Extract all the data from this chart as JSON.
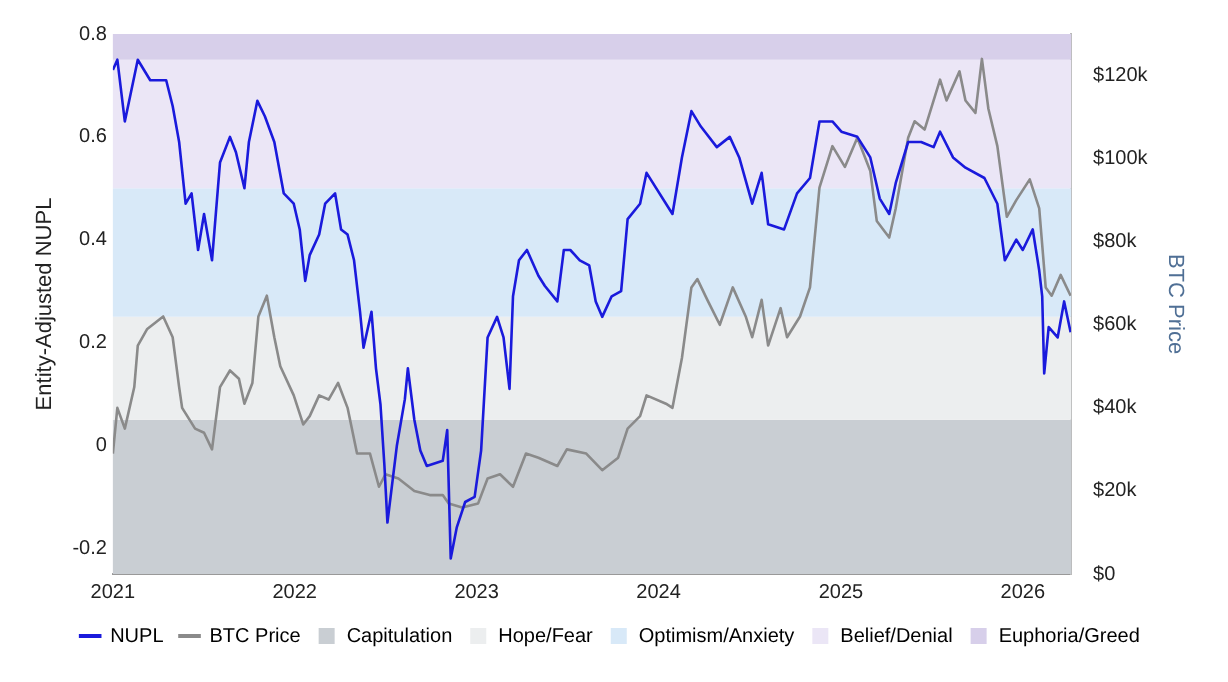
{
  "chart_data": {
    "type": "line",
    "xlabel": null,
    "ylabel": "Entity-Adjusted NUPL",
    "y2label": "BTC Price",
    "xlim": [
      "2021-01-01",
      "2026-04-08"
    ],
    "xticks": [
      "2021",
      "2022",
      "2023",
      "2024",
      "2025",
      "2026"
    ],
    "ylim": [
      -0.25,
      0.8
    ],
    "yticks": [
      -0.2,
      0,
      0.2,
      0.4,
      0.6,
      0.8
    ],
    "y2lim": [
      0,
      130000
    ],
    "y2ticks": [
      {
        "value": 0,
        "label": "$0"
      },
      {
        "value": 20000,
        "label": "$20k"
      },
      {
        "value": 40000,
        "label": "$40k"
      },
      {
        "value": 60000,
        "label": "$60k"
      },
      {
        "value": 80000,
        "label": "$80k"
      },
      {
        "value": 100000,
        "label": "$100k"
      },
      {
        "value": 120000,
        "label": "$120k"
      }
    ],
    "grid": false,
    "legend": "bottom",
    "marker": "none",
    "line_style": "solid",
    "bands": [
      {
        "axis": "y",
        "from": -0.25,
        "to": 0.05,
        "label": "Capitulation",
        "color": "#c9ced3"
      },
      {
        "axis": "y",
        "from": 0.05,
        "to": 0.25,
        "label": "Hope/Fear",
        "color": "#eceeef"
      },
      {
        "axis": "y",
        "from": 0.25,
        "to": 0.5,
        "label": "Optimism/Anxiety",
        "color": "#d8e9f8"
      },
      {
        "axis": "y",
        "from": 0.5,
        "to": 0.75,
        "label": "Belief/Denial",
        "color": "#ebe6f6"
      },
      {
        "axis": "y",
        "from": 0.75,
        "to": 0.8,
        "label": "Euphoria/Greed",
        "color": "#d7cfea"
      }
    ],
    "series": [
      {
        "name": "NUPL",
        "color": "#1a1adc",
        "x": [
          "2021-01-01",
          "2021-01-10",
          "2021-01-25",
          "2021-02-20",
          "2021-03-17",
          "2021-04-18",
          "2021-05-01",
          "2021-05-14",
          "2021-05-27",
          "2021-06-08",
          "2021-06-21",
          "2021-07-03",
          "2021-07-19",
          "2021-08-04",
          "2021-08-24",
          "2021-09-05",
          "2021-09-22",
          "2021-10-01",
          "2021-10-18",
          "2021-11-02",
          "2021-11-21",
          "2021-12-10",
          "2021-12-30",
          "2022-01-11",
          "2022-01-22",
          "2022-01-31",
          "2022-02-19",
          "2022-03-03",
          "2022-03-23",
          "2022-04-04",
          "2022-04-17",
          "2022-04-30",
          "2022-05-12",
          "2022-05-19",
          "2022-06-04",
          "2022-06-13",
          "2022-06-22",
          "2022-06-30",
          "2022-07-06",
          "2022-07-25",
          "2022-08-10",
          "2022-08-16",
          "2022-08-29",
          "2022-09-10",
          "2022-09-23",
          "2022-10-25",
          "2022-11-03",
          "2022-11-10",
          "2022-11-22",
          "2022-12-09",
          "2022-12-28",
          "2023-01-10",
          "2023-01-23",
          "2023-02-11",
          "2023-02-24",
          "2023-03-08",
          "2023-03-15",
          "2023-03-27",
          "2023-04-12",
          "2023-05-05",
          "2023-05-18",
          "2023-06-12",
          "2023-06-25",
          "2023-07-08",
          "2023-07-27",
          "2023-08-15",
          "2023-08-28",
          "2023-09-10",
          "2023-09-29",
          "2023-10-18",
          "2023-10-31",
          "2023-11-25",
          "2023-12-08",
          "2024-01-29",
          "2024-02-17",
          "2024-03-07",
          "2024-03-26",
          "2024-04-27",
          "2024-05-23",
          "2024-06-11",
          "2024-07-07",
          "2024-07-26",
          "2024-08-08",
          "2024-09-09",
          "2024-10-05",
          "2024-10-31",
          "2024-11-19",
          "2024-12-15",
          "2025-01-02",
          "2025-02-03",
          "2025-03-01",
          "2025-03-20",
          "2025-04-08",
          "2025-04-21",
          "2025-05-16",
          "2025-06-11",
          "2025-07-06",
          "2025-07-19",
          "2025-08-14",
          "2025-09-08",
          "2025-10-16",
          "2025-11-11",
          "2025-11-26",
          "2025-12-19",
          "2026-01-01",
          "2026-01-21",
          "2026-02-03",
          "2026-02-09",
          "2026-02-13",
          "2026-02-22",
          "2026-03-12",
          "2026-03-25",
          "2026-04-07"
        ],
        "values": [
          0.73,
          0.75,
          0.63,
          0.75,
          0.71,
          0.71,
          0.66,
          0.59,
          0.47,
          0.49,
          0.38,
          0.45,
          0.36,
          0.55,
          0.6,
          0.57,
          0.5,
          0.59,
          0.67,
          0.64,
          0.59,
          0.49,
          0.47,
          0.42,
          0.32,
          0.37,
          0.41,
          0.47,
          0.49,
          0.42,
          0.41,
          0.36,
          0.26,
          0.19,
          0.26,
          0.15,
          0.08,
          -0.04,
          -0.15,
          0.0,
          0.09,
          0.15,
          0.05,
          -0.01,
          -0.04,
          -0.03,
          0.03,
          -0.22,
          -0.16,
          -0.11,
          -0.1,
          -0.01,
          0.21,
          0.25,
          0.21,
          0.11,
          0.29,
          0.36,
          0.38,
          0.33,
          0.31,
          0.28,
          0.38,
          0.38,
          0.36,
          0.35,
          0.28,
          0.25,
          0.29,
          0.3,
          0.44,
          0.47,
          0.53,
          0.45,
          0.56,
          0.65,
          0.62,
          0.58,
          0.6,
          0.56,
          0.47,
          0.53,
          0.43,
          0.42,
          0.49,
          0.52,
          0.63,
          0.63,
          0.61,
          0.6,
          0.56,
          0.48,
          0.45,
          0.51,
          0.59,
          0.59,
          0.58,
          0.61,
          0.56,
          0.54,
          0.52,
          0.47,
          0.36,
          0.4,
          0.38,
          0.42,
          0.34,
          0.29,
          0.14,
          0.23,
          0.21,
          0.28,
          0.22
        ]
      },
      {
        "name": "BTC Price",
        "color": "#8a8a8a",
        "axis": "y2",
        "x": [
          "2021-01-01",
          "2021-01-10",
          "2021-01-25",
          "2021-02-13",
          "2021-02-20",
          "2021-03-11",
          "2021-04-12",
          "2021-05-01",
          "2021-05-14",
          "2021-05-20",
          "2021-06-15",
          "2021-07-03",
          "2021-07-19",
          "2021-08-04",
          "2021-08-24",
          "2021-09-11",
          "2021-09-22",
          "2021-10-08",
          "2021-10-20",
          "2021-11-06",
          "2021-11-21",
          "2021-12-03",
          "2021-12-30",
          "2022-01-18",
          "2022-01-31",
          "2022-02-19",
          "2022-03-10",
          "2022-03-29",
          "2022-04-17",
          "2022-05-06",
          "2022-06-01",
          "2022-06-19",
          "2022-07-02",
          "2022-07-28",
          "2022-08-29",
          "2022-09-29",
          "2022-10-25",
          "2022-11-06",
          "2022-12-03",
          "2023-01-04",
          "2023-01-23",
          "2023-02-17",
          "2023-03-15",
          "2023-04-10",
          "2023-05-05",
          "2023-06-12",
          "2023-07-01",
          "2023-08-09",
          "2023-09-10",
          "2023-10-12",
          "2023-10-31",
          "2023-11-25",
          "2023-12-08",
          "2024-01-16",
          "2024-01-29",
          "2024-02-17",
          "2024-03-07",
          "2024-03-19",
          "2024-04-08",
          "2024-05-03",
          "2024-05-29",
          "2024-06-24",
          "2024-07-07",
          "2024-07-26",
          "2024-08-08",
          "2024-09-02",
          "2024-09-15",
          "2024-10-11",
          "2024-10-31",
          "2024-11-19",
          "2024-12-15",
          "2025-01-09",
          "2025-02-03",
          "2025-03-01",
          "2025-03-14",
          "2025-04-08",
          "2025-04-21",
          "2025-05-16",
          "2025-05-29",
          "2025-06-18",
          "2025-07-19",
          "2025-08-01",
          "2025-08-27",
          "2025-09-08",
          "2025-09-28",
          "2025-10-11",
          "2025-10-24",
          "2025-11-11",
          "2025-11-30",
          "2025-12-19",
          "2026-01-15",
          "2026-02-03",
          "2026-02-16",
          "2026-02-28",
          "2026-03-18",
          "2026-04-07"
        ],
        "values": [
          29000,
          40000,
          35000,
          45000,
          55000,
          59000,
          62000,
          57000,
          45000,
          40000,
          35000,
          34000,
          30000,
          45000,
          49000,
          47000,
          41000,
          46000,
          62000,
          67000,
          57000,
          50000,
          43000,
          36000,
          38000,
          43000,
          42000,
          46000,
          40000,
          29000,
          29000,
          21000,
          24000,
          23000,
          20000,
          19000,
          19000,
          17000,
          16000,
          17000,
          23000,
          24000,
          21000,
          29000,
          28000,
          26000,
          30000,
          29000,
          25000,
          28000,
          35000,
          38000,
          43000,
          41000,
          40000,
          52000,
          69000,
          71000,
          66000,
          60000,
          69000,
          62000,
          57000,
          66000,
          55000,
          64000,
          57000,
          62000,
          69000,
          93000,
          103000,
          98000,
          105000,
          97000,
          85000,
          81000,
          88000,
          105000,
          109000,
          107000,
          119000,
          114000,
          121000,
          114000,
          111000,
          124000,
          112000,
          103000,
          86000,
          90000,
          95000,
          88000,
          69000,
          67000,
          72000,
          67000
        ]
      }
    ]
  }
}
